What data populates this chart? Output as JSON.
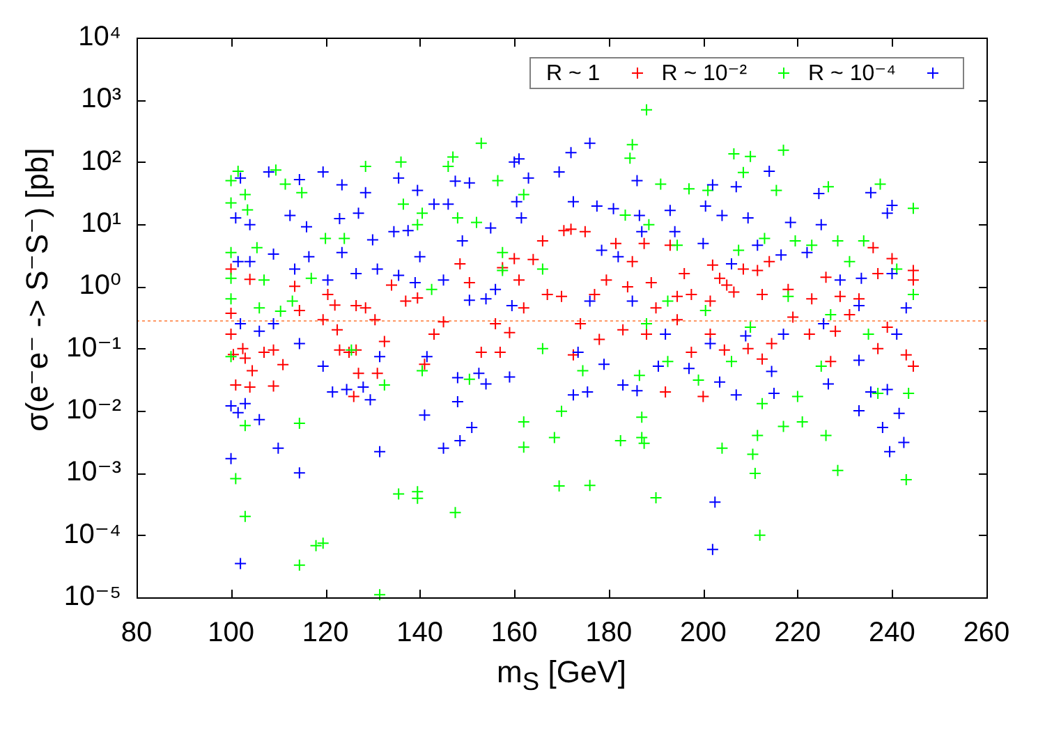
{
  "chart_data": {
    "type": "scatter",
    "xlabel": "m$_{S}$ [GeV]",
    "ylabel": "σ(e⁻e⁻ -> S⁻S⁻) [pb]",
    "xlim": [
      80,
      260
    ],
    "xticks": [
      80,
      100,
      120,
      140,
      160,
      180,
      200,
      220,
      240,
      260
    ],
    "ylim": [
      1e-05,
      10000
    ],
    "yticks": [
      {
        "value": 1e-05,
        "label": "10⁻⁵"
      },
      {
        "value": 0.0001,
        "label": "10⁻⁴"
      },
      {
        "value": 0.001,
        "label": "10⁻³"
      },
      {
        "value": 0.01,
        "label": "10⁻²"
      },
      {
        "value": 0.1,
        "label": "10⁻¹"
      },
      {
        "value": 1,
        "label": "10⁰"
      },
      {
        "value": 10,
        "label": "10¹"
      },
      {
        "value": 100,
        "label": "10²"
      },
      {
        "value": 1000,
        "label": "10³"
      },
      {
        "value": 10000,
        "label": "10⁴"
      }
    ],
    "log": "y",
    "legend": "top right",
    "marker": "cross",
    "ref_lines": [
      {
        "axis": "y",
        "value": 0.28,
        "color": "#ff9966",
        "line_style": "dotted"
      }
    ],
    "series": [
      {
        "name": "R ~ 1",
        "color": "#ff0000",
        "x": [
          100,
          104,
          100,
          100,
          102.5,
          100.5,
          103,
          104.5,
          101,
          104,
          107,
          109,
          111,
          109,
          113.5,
          114.5,
          120.5,
          122,
          119.5,
          122.5,
          123,
          126.5,
          125,
          127,
          126,
          131,
          130.5,
          128.5,
          126.5,
          134,
          132.5,
          137,
          139.5,
          141,
          143,
          145,
          148.5,
          150.5,
          153,
          157,
          156,
          157.5,
          161,
          162,
          159,
          166,
          167,
          170,
          170.5,
          172.5,
          164,
          172,
          175,
          181.5,
          187.5,
          193,
          203.5,
          205,
          208.5,
          211.5,
          214,
          236,
          237,
          244.5,
          244.5,
          177,
          179.5,
          184,
          189,
          194.5,
          197.5,
          201.5,
          206.5,
          212.5,
          223,
          229,
          233,
          239,
          174,
          178,
          183,
          188,
          194.5,
          201.5,
          209.5,
          214.5,
          222.5,
          228,
          237,
          243,
          244.5,
          197.5,
          204.5,
          212.5,
          227,
          200,
          192,
          218,
          226,
          240,
          231,
          219,
          202,
          196,
          190,
          185,
          160
        ],
        "values": [
          1.9,
          1.3,
          0.37,
          0.17,
          0.1,
          0.08,
          0.07,
          0.044,
          0.026,
          0.024,
          0.087,
          0.095,
          0.055,
          0.025,
          1.0,
          0.41,
          0.74,
          0.5,
          0.29,
          0.2,
          0.095,
          0.095,
          0.087,
          0.04,
          0.017,
          0.04,
          0.29,
          0.45,
          0.49,
          1.05,
          0.13,
          0.58,
          0.65,
          0.056,
          0.17,
          0.27,
          2.3,
          1.15,
          0.087,
          0.087,
          0.25,
          2.0,
          1.26,
          0.45,
          0.18,
          5.4,
          0.74,
          0.69,
          7.9,
          0.079,
          2.7,
          8.3,
          7.6,
          4.9,
          4.9,
          4.6,
          1.35,
          1.05,
          1.9,
          1.8,
          2.5,
          4.2,
          1.6,
          1.8,
          1.26,
          0.74,
          1.26,
          0.98,
          1.15,
          0.69,
          0.74,
          0.58,
          0.81,
          0.74,
          0.63,
          0.69,
          0.63,
          0.22,
          0.25,
          0.14,
          0.2,
          0.17,
          0.29,
          0.17,
          0.1,
          0.12,
          0.17,
          0.19,
          0.1,
          0.079,
          0.052,
          0.087,
          0.095,
          0.068,
          0.062,
          0.017,
          0.02,
          0.89,
          1.4,
          2.8,
          0.35,
          0.32,
          2.2,
          1.6,
          0.45,
          2.5,
          2.8
        ]
      },
      {
        "name": "R ~ 10⁻²",
        "color": "#00ff00",
        "x": [
          101.5,
          100,
          100,
          103,
          103.5,
          109.5,
          111.5,
          128.5,
          136,
          146,
          147,
          153,
          156.5,
          162,
          100,
          100,
          100,
          100,
          105.5,
          107,
          106,
          110.5,
          113,
          117,
          120,
          124,
          125.5,
          132.5,
          140.5,
          140.5,
          142.5,
          148,
          150.5,
          152,
          157.5,
          157.5,
          162,
          162,
          170,
          168.5,
          169.5,
          103,
          101,
          103,
          114.5,
          118,
          119.5,
          114.5,
          135.5,
          139.5,
          139.5,
          147.5,
          131.5,
          166,
          166,
          115,
          136.5,
          139.5,
          188,
          185,
          184.5,
          217,
          210,
          206.5,
          208.5,
          237.5,
          244.5,
          191,
          197,
          201,
          215.5,
          226.5,
          183.5,
          188.5,
          194.5,
          207.5,
          213,
          219.5,
          223,
          228.5,
          234,
          231,
          241,
          244.5,
          188,
          192.5,
          200.5,
          210,
          218,
          227,
          235,
          174.5,
          186.5,
          192.5,
          199,
          206,
          212.5,
          220,
          225,
          237,
          243.5,
          182.5,
          187,
          187,
          187.5,
          204,
          210.5,
          211,
          211.5,
          217,
          221,
          226,
          228.5,
          243,
          176,
          190,
          212
        ],
        "values": [
          71,
          50,
          22,
          30,
          17,
          74,
          44,
          85,
          100,
          85,
          120,
          200,
          50,
          30,
          3.5,
          1.35,
          0.63,
          0.074,
          4.2,
          1.26,
          0.45,
          0.4,
          0.58,
          1.35,
          5.9,
          5.9,
          0.095,
          0.026,
          15,
          0.044,
          0.89,
          12.6,
          0.032,
          10.7,
          3.5,
          1.8,
          0.0066,
          0.0026,
          0.0098,
          0.0037,
          0.00062,
          0.0058,
          0.00081,
          0.0002,
          0.0063,
          6.8e-05,
          7.4e-05,
          3.3e-05,
          0.00046,
          0.0005,
          0.00039,
          0.00023,
          1.1e-05,
          1.9,
          0.1,
          32,
          21,
          9.8,
          690,
          190,
          115,
          155,
          123,
          135,
          68,
          44,
          18,
          44,
          37,
          35,
          35,
          40,
          14,
          9.8,
          4.6,
          3.8,
          5.9,
          5.4,
          4.6,
          5.4,
          5.4,
          2.5,
          1.9,
          0.74,
          0.25,
          0.58,
          0.41,
          0.22,
          0.69,
          0.35,
          0.17,
          0.044,
          0.037,
          0.062,
          0.031,
          0.062,
          0.013,
          0.017,
          0.052,
          0.019,
          0.019,
          0.0033,
          0.0079,
          0.0037,
          0.003,
          0.0025,
          0.002,
          0.00098,
          0.004,
          0.0056,
          0.0066,
          0.004,
          0.0011,
          0.00078,
          0.00063,
          0.0004,
          0.0001
        ]
      },
      {
        "name": "R ~ 10⁻⁴",
        "color": "#0000ff",
        "x": [
          102,
          108,
          119.5,
          114.5,
          123.5,
          128.5,
          135.5,
          139.5,
          147.5,
          150.5,
          160,
          161,
          163,
          172,
          169.5,
          101,
          104,
          112.5,
          116,
          123,
          127,
          130,
          134.5,
          137.5,
          143,
          146,
          149,
          155,
          160.5,
          161.5,
          101.5,
          104,
          109,
          113.5,
          116.5,
          120.5,
          123.5,
          126.5,
          131,
          135.5,
          140,
          139,
          145,
          150.5,
          154,
          156,
          159.5,
          102,
          106,
          109,
          114.5,
          119.5,
          121.5,
          124.5,
          128,
          129.5,
          131.5,
          141.5,
          148,
          152.5,
          154,
          159,
          141,
          148,
          145,
          148.5,
          151,
          100,
          100,
          101.5,
          103,
          106,
          110,
          114.5,
          131.5,
          102,
          172.5,
          176,
          186,
          202,
          207,
          214,
          224.5,
          235.5,
          240,
          172.5,
          177.5,
          181,
          186.5,
          193,
          200.5,
          204,
          209.5,
          218.5,
          225,
          239,
          178.5,
          182,
          187,
          194,
          200,
          206,
          211.5,
          216.5,
          222,
          229,
          233.5,
          240,
          243,
          176,
          185,
          192,
          201.5,
          209,
          217,
          225.5,
          233,
          241,
          173.5,
          179,
          190.5,
          197,
          203.5,
          214.5,
          226.5,
          233,
          239,
          175.5,
          183,
          186,
          207,
          215,
          233,
          235.5,
          238,
          239.5,
          241.5,
          242.5,
          202.5,
          202
        ],
        "values": [
          55,
          69,
          69,
          52,
          43,
          32,
          55,
          35,
          49,
          46,
          100,
          112,
          55,
          141,
          69,
          12.6,
          9.8,
          13.8,
          9.1,
          12.3,
          15,
          5.6,
          7.6,
          7.9,
          21,
          21,
          5.4,
          8.7,
          23,
          12.6,
          2.5,
          2.5,
          3.3,
          1.9,
          3.0,
          1.26,
          3.5,
          1.6,
          1.9,
          1.5,
          3.0,
          1.15,
          1.26,
          0.6,
          0.63,
          0.89,
          0.49,
          0.25,
          0.19,
          0.25,
          0.12,
          0.052,
          0.02,
          0.022,
          0.024,
          0.015,
          0.074,
          0.074,
          0.034,
          0.04,
          0.027,
          0.035,
          0.0085,
          0.014,
          0.0025,
          0.0033,
          0.0054,
          0.0017,
          0.012,
          0.0093,
          0.013,
          0.0072,
          0.0025,
          0.001,
          0.0022,
          3.5e-05,
          0.018,
          200,
          50,
          43,
          40,
          71,
          31,
          32,
          20,
          23,
          19.5,
          17.8,
          13.8,
          16.6,
          19.5,
          13.8,
          12.6,
          10.7,
          9.8,
          15,
          3.8,
          3.0,
          7.6,
          7.6,
          4.9,
          2.3,
          4.6,
          3.2,
          3.5,
          1.26,
          1.35,
          1.6,
          0.45,
          0.58,
          0.58,
          0.17,
          0.12,
          0.16,
          0.17,
          0.25,
          0.49,
          0.17,
          0.087,
          0.056,
          0.052,
          0.048,
          0.029,
          0.043,
          0.027,
          0.065,
          0.022,
          0.02,
          0.026,
          0.021,
          0.018,
          0.019,
          0.01,
          0.02,
          0.0054,
          0.0022,
          0.0091,
          0.0031,
          0.00034,
          5.9e-05
        ]
      }
    ]
  }
}
